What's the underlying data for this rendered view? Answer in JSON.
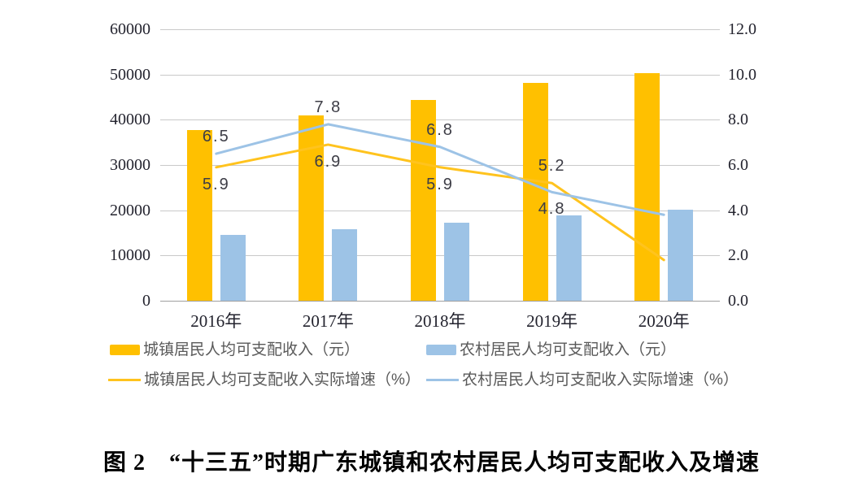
{
  "figure": {
    "caption": "图 2　“十三五”时期广东城镇和农村居民人均可支配收入及增速"
  },
  "chart_data": {
    "type": "combo-bar-line",
    "title": "“十三五”时期广东城镇和农村居民人均可支配收入及增速",
    "categories": [
      "2016年",
      "2017年",
      "2018年",
      "2019年",
      "2020年"
    ],
    "bar_series": [
      {
        "id": "urban-income",
        "name": "城镇居民人均可支配收入（元）",
        "color": "#FFC000",
        "axis": "left",
        "values": [
          37700,
          41000,
          44300,
          48100,
          50300
        ]
      },
      {
        "id": "rural-income",
        "name": "农村居民人均可支配收入（元）",
        "color": "#9DC3E6",
        "axis": "left",
        "values": [
          14500,
          15800,
          17200,
          18800,
          20100
        ]
      }
    ],
    "line_series": [
      {
        "id": "urban-growth",
        "name": "城镇居民人均可支配收入实际增速（%）",
        "color": "#FFC31E",
        "axis": "right",
        "values": [
          5.9,
          6.9,
          5.9,
          5.2,
          1.8
        ],
        "point_labels": [
          "5.9",
          "6.9",
          "5.9",
          "5.2",
          null
        ]
      },
      {
        "id": "rural-growth",
        "name": "农村居民人均可支配收入实际增速（%）",
        "color": "#9DC3E6",
        "axis": "right",
        "values": [
          6.5,
          7.8,
          6.8,
          4.8,
          3.8
        ],
        "point_labels": [
          "6.5",
          "7.8",
          "6.8",
          "4.8",
          null
        ]
      }
    ],
    "left_axis": {
      "min": 0,
      "max": 60000,
      "step": 10000,
      "tick_labels_top_to_bottom": [
        "60000",
        "50000",
        "40000",
        "30000",
        "20000",
        "10000",
        "0"
      ]
    },
    "right_axis": {
      "min": 0.0,
      "max": 12.0,
      "step": 2.0,
      "tick_labels_top_to_bottom": [
        "12.0",
        "10.0",
        "8.0",
        "6.0",
        "4.0",
        "2.0",
        "0.0"
      ]
    },
    "grid": true,
    "legend_position": "bottom",
    "colors": {
      "gridline": "#c9c9c9",
      "axis_line": "#a0a0a0",
      "axis_text": "#23232e",
      "point_label_text": "#3d3d46",
      "legend_text": "#595959",
      "background": "#ffffff"
    }
  }
}
